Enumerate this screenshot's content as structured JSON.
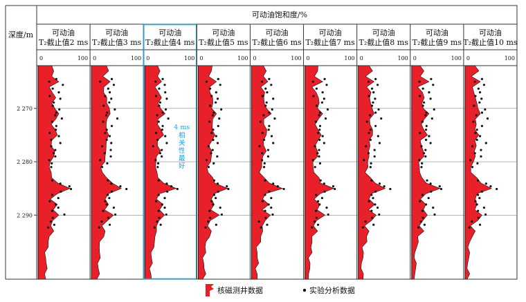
{
  "chart_data": {
    "type": "area",
    "title": "可动油饱和度/%",
    "ylabel": "深度/m",
    "y_ticks": [
      2270,
      2280,
      2290
    ],
    "y_tick_labels": [
      "2 270",
      "2 280",
      "2 290"
    ],
    "ylim": [
      2262,
      2302
    ],
    "xlim": [
      0,
      100
    ],
    "x_tick_labels": [
      "0",
      "100"
    ],
    "panels": [
      {
        "label_line1": "可动油",
        "label_line2": "T₂截止值2 ms",
        "cutoff_ms": 2
      },
      {
        "label_line1": "可动油",
        "label_line2": "T₂截止值3 ms",
        "cutoff_ms": 3
      },
      {
        "label_line1": "可动油",
        "label_line2": "T₂截止值4 ms",
        "cutoff_ms": 4
      },
      {
        "label_line1": "可动油",
        "label_line2": "T₂截止值5 ms",
        "cutoff_ms": 5
      },
      {
        "label_line1": "可动油",
        "label_line2": "T₂截止值6 ms",
        "cutoff_ms": 6
      },
      {
        "label_line1": "可动油",
        "label_line2": "T₂截止值7 ms",
        "cutoff_ms": 7
      },
      {
        "label_line1": "可动油",
        "label_line2": "T₂截止值8 ms",
        "cutoff_ms": 8
      },
      {
        "label_line1": "可动油",
        "label_line2": "T₂截止值9 ms",
        "cutoff_ms": 9
      },
      {
        "label_line1": "可动油",
        "label_line2": "T₂截止值10 ms",
        "cutoff_ms": 10
      }
    ],
    "highlight_panel": 2,
    "annotation": {
      "panel": 2,
      "line1": "4 ms",
      "chars": [
        "相",
        "关",
        "性",
        "最",
        "好"
      ]
    },
    "nmr_curve": {
      "depth": [
        2262,
        2263,
        2264,
        2265,
        2266,
        2267,
        2268,
        2269,
        2270,
        2271,
        2272,
        2273,
        2274,
        2275,
        2276,
        2277,
        2278,
        2279,
        2280,
        2281,
        2282,
        2283,
        2284,
        2285,
        2286,
        2287,
        2288,
        2289,
        2290,
        2291,
        2292,
        2293,
        2294,
        2295,
        2296,
        2297,
        2298,
        2299,
        2300,
        2301,
        2302
      ],
      "base_saturation": [
        30,
        32,
        26,
        38,
        24,
        28,
        33,
        30,
        34,
        40,
        32,
        28,
        34,
        36,
        30,
        27,
        32,
        28,
        26,
        22,
        24,
        30,
        40,
        62,
        35,
        26,
        38,
        28,
        44,
        30,
        24,
        28,
        24,
        20,
        18,
        16,
        16,
        15,
        15,
        15,
        15
      ]
    },
    "core_samples": {
      "depth": [
        2264.5,
        2265.0,
        2265.6,
        2266.3,
        2267.0,
        2267.7,
        2268.2,
        2268.9,
        2269.5,
        2270.2,
        2270.8,
        2271.3,
        2271.9,
        2272.5,
        2273.3,
        2274.0,
        2274.6,
        2275.2,
        2275.9,
        2276.5,
        2277.1,
        2277.8,
        2278.4,
        2279.0,
        2279.7,
        2280.3,
        2281.0,
        2283.5,
        2284.1,
        2284.6,
        2285.1,
        2285.6,
        2286.2,
        2286.8,
        2287.4,
        2288.0,
        2288.6,
        2289.2,
        2289.9,
        2290.5,
        2291.2,
        2291.8,
        2292.3
      ],
      "base_saturation": [
        40,
        22,
        45,
        30,
        38,
        25,
        42,
        34,
        28,
        46,
        36,
        30,
        48,
        25,
        38,
        33,
        26,
        40,
        30,
        44,
        22,
        35,
        28,
        36,
        20,
        30,
        25,
        32,
        44,
        58,
        66,
        42,
        30,
        38,
        26,
        34,
        44,
        28,
        48,
        30,
        22,
        34,
        18
      ]
    }
  },
  "legend": {
    "nmr_label": "核磁测井数据",
    "core_label": "实验分析数据",
    "nmr_color": "#e8202a",
    "core_color": "#111111"
  },
  "colors": {
    "fill": "#e8202a",
    "grid": "#888888",
    "highlight": "#1aa3d9"
  }
}
